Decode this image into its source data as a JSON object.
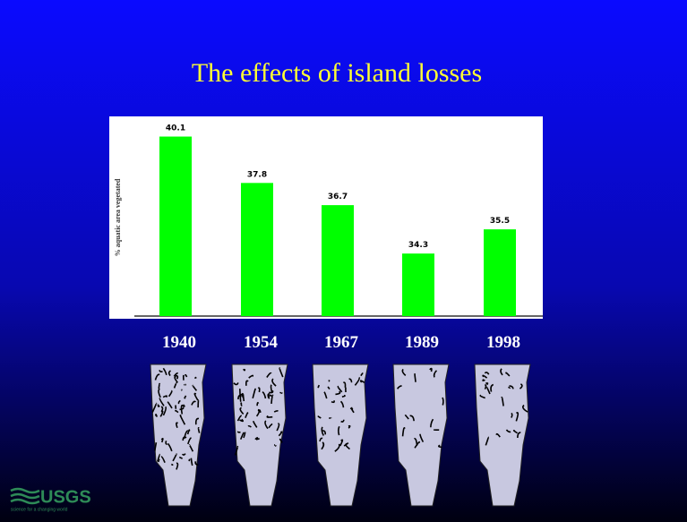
{
  "chart_data": {
    "type": "bar",
    "title": "The effects of island losses",
    "y_label": "% aquatic area vegetated",
    "categories": [
      "1940",
      "1954",
      "1967",
      "1989",
      "1998"
    ],
    "values": [
      40.1,
      37.8,
      36.7,
      34.3,
      35.5
    ],
    "color": "#00ff00",
    "ylim": [
      31.2,
      41.1
    ]
  },
  "logo": {
    "name": "USGS",
    "tagline": "science for a changing world"
  }
}
